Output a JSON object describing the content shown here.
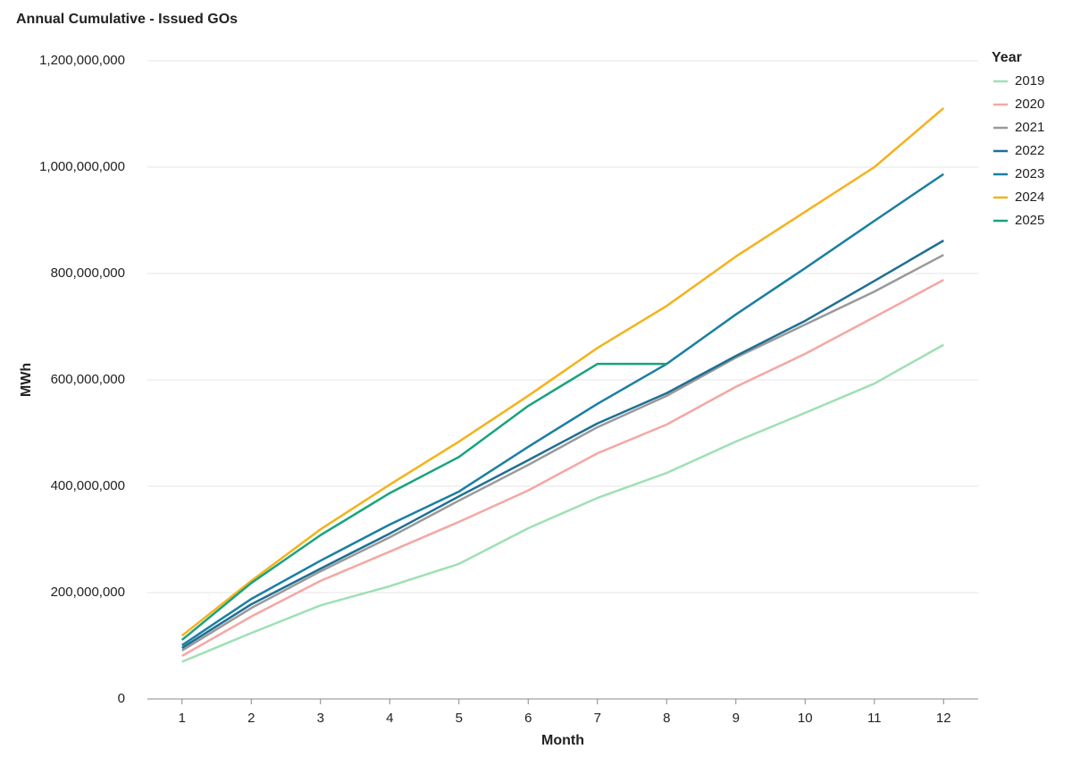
{
  "chart_data": {
    "type": "line",
    "title": "Annual Cumulative - Issued GOs",
    "xlabel": "Month",
    "ylabel": "MWh",
    "legend_title": "Year",
    "legend": "right",
    "grid": true,
    "x": [
      1,
      2,
      3,
      4,
      5,
      6,
      7,
      8,
      9,
      10,
      11,
      12
    ],
    "xlim": [
      0.5,
      12.5
    ],
    "xticks": [
      1,
      2,
      3,
      4,
      5,
      6,
      7,
      8,
      9,
      10,
      11,
      12
    ],
    "ylim": [
      0,
      1200000000
    ],
    "yticks": [
      0,
      {
        "value": 200000000,
        "label": "200,000,000"
      },
      {
        "value": 400000000,
        "label": "400,000,000"
      },
      {
        "value": 600000000,
        "label": "600,000,000"
      },
      {
        "value": 800000000,
        "label": "800,000,000"
      },
      {
        "value": 1000000000,
        "label": "1,000,000,000"
      },
      {
        "value": 1200000000,
        "label": "1,200,000,000"
      }
    ],
    "series": [
      {
        "name": "2019",
        "color": "#9ee0b5",
        "values": [
          70000000,
          124000000,
          176000000,
          212000000,
          254000000,
          321000000,
          378000000,
          425000000,
          484000000,
          538000000,
          593000000,
          666000000
        ]
      },
      {
        "name": "2020",
        "color": "#f4a7a3",
        "values": [
          81000000,
          155000000,
          222000000,
          277000000,
          333000000,
          392000000,
          462000000,
          516000000,
          587000000,
          649000000,
          718000000,
          788000000
        ]
      },
      {
        "name": "2021",
        "color": "#999999",
        "values": [
          91000000,
          171000000,
          240000000,
          304000000,
          373000000,
          440000000,
          511000000,
          570000000,
          642000000,
          704000000,
          766000000,
          835000000
        ]
      },
      {
        "name": "2022",
        "color": "#1f6f94",
        "values": [
          96000000,
          178000000,
          245000000,
          311000000,
          381000000,
          449000000,
          518000000,
          575000000,
          645000000,
          711000000,
          786000000,
          862000000
        ]
      },
      {
        "name": "2023",
        "color": "#1a7fa3",
        "values": [
          101000000,
          188000000,
          260000000,
          328000000,
          390000000,
          474000000,
          555000000,
          630000000,
          723000000,
          810000000,
          899000000,
          987000000
        ]
      },
      {
        "name": "2024",
        "color": "#f5b21b",
        "values": [
          119000000,
          222000000,
          319000000,
          403000000,
          484000000,
          570000000,
          660000000,
          739000000,
          832000000,
          916000000,
          1000000000,
          1111000000
        ]
      },
      {
        "name": "2025",
        "color": "#18a37e",
        "values": [
          111000000,
          218000000,
          308000000,
          387000000,
          455000000,
          551000000,
          630000000,
          630000000,
          null,
          null,
          null,
          null
        ]
      }
    ]
  }
}
